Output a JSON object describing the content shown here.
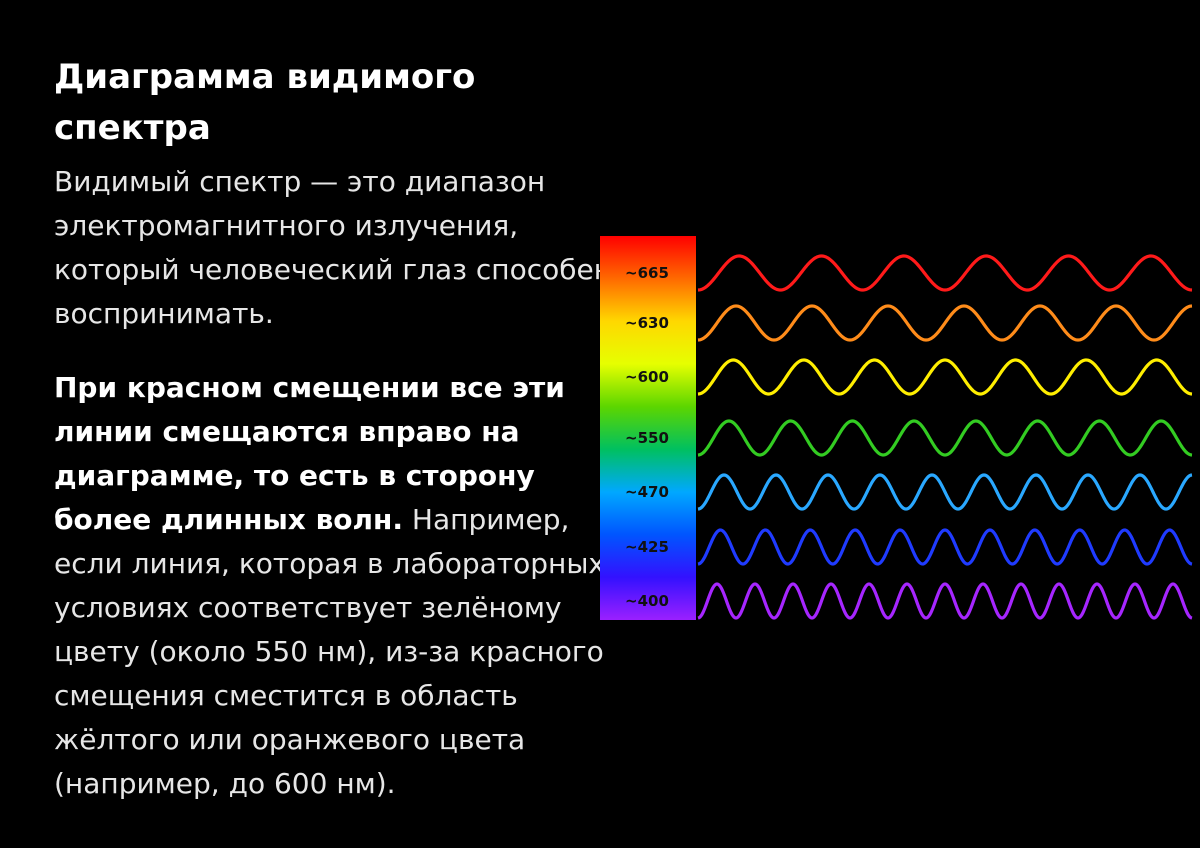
{
  "title": "Диаграмма видимого спектра",
  "intro": "Видимый спектр — это диапазон электромагнитного излучения, который человеческий глаз способен воспринимать.",
  "redshift": {
    "bold": "При красном смещении все эти линии смещаются вправо на диаграмме, то есть в сторону более длинных волн.",
    "rest": " Например, если линия, которая в лабораторных условиях соответствует зелёному цвету (около 550 нм), из-за красного смещения сместится в область жёлтого или оранжевого цвета (например, до 600 нм)."
  },
  "spectrum": {
    "gradient_colors": [
      "#ff0000",
      "#ff6a00",
      "#ffd800",
      "#e6ff00",
      "#5cd600",
      "#00c060",
      "#00a8ff",
      "#0055ff",
      "#3311ff",
      "#9b20ff"
    ],
    "waves": [
      {
        "label": "~665",
        "color": "#ff1a1a",
        "cycles": 6
      },
      {
        "label": "~630",
        "color": "#ff8c1a",
        "cycles": 6.5
      },
      {
        "label": "~600",
        "color": "#ffee00",
        "cycles": 7
      },
      {
        "label": "~550",
        "color": "#33cc22",
        "cycles": 8
      },
      {
        "label": "~470",
        "color": "#2aa8ff",
        "cycles": 9.5
      },
      {
        "label": "~425",
        "color": "#1f3bff",
        "cycles": 11
      },
      {
        "label": "~400",
        "color": "#a626ff",
        "cycles": 13
      }
    ]
  }
}
